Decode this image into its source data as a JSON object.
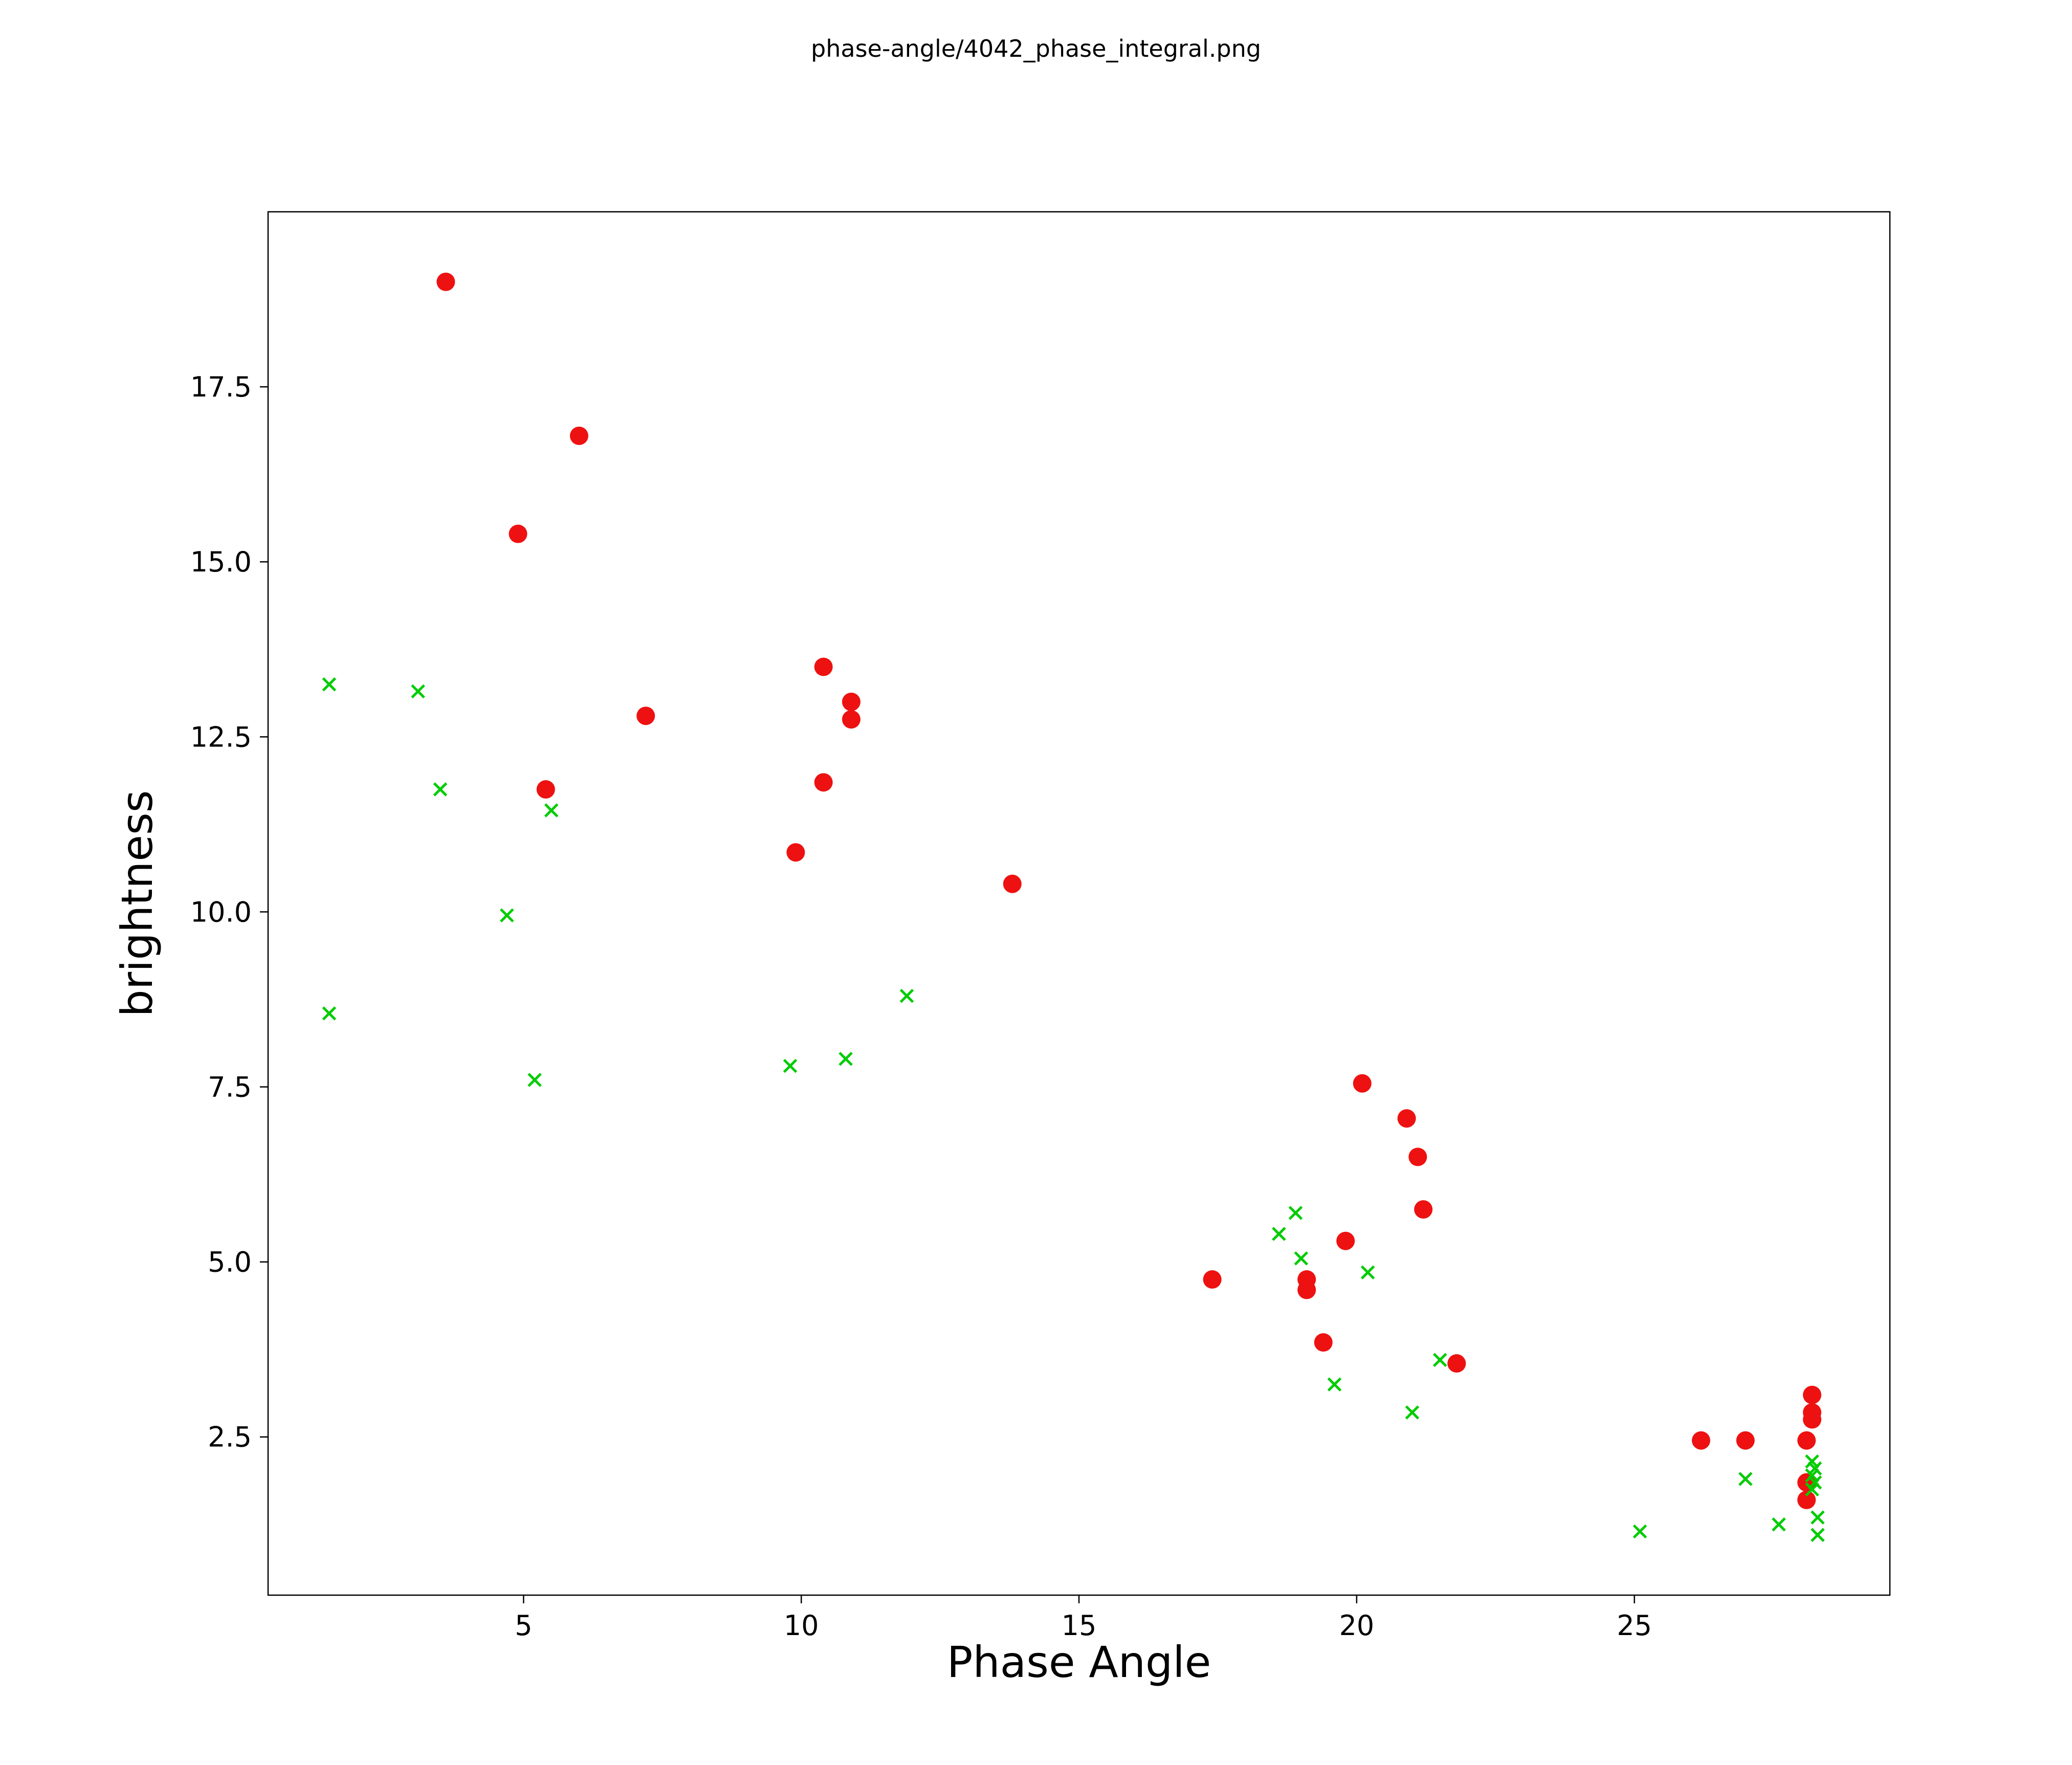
{
  "title": "phase-angle/4042_phase_integral.png",
  "chart_data": {
    "type": "scatter",
    "title": "phase-angle/4042_phase_integral.png",
    "xlabel": "Phase Angle",
    "ylabel": "brightness",
    "xlim": [
      0.4,
      29.6
    ],
    "ylim": [
      0.24,
      20.0
    ],
    "grid": false,
    "legend": "none",
    "x_ticks": [
      {
        "value": 5,
        "label": "5"
      },
      {
        "value": 10,
        "label": "10"
      },
      {
        "value": 15,
        "label": "15"
      },
      {
        "value": 20,
        "label": "20"
      },
      {
        "value": 25,
        "label": "25"
      }
    ],
    "y_ticks": [
      {
        "value": 2.5,
        "label": "2.5"
      },
      {
        "value": 5.0,
        "label": "5.0"
      },
      {
        "value": 7.5,
        "label": "7.5"
      },
      {
        "value": 10.0,
        "label": "10.0"
      },
      {
        "value": 12.5,
        "label": "12.5"
      },
      {
        "value": 15.0,
        "label": "15.0"
      },
      {
        "value": 17.5,
        "label": "17.5"
      }
    ],
    "series": [
      {
        "name": "red-circles",
        "marker": "circle",
        "color": "#ee1111",
        "points": [
          [
            3.6,
            19.0
          ],
          [
            6.0,
            16.8
          ],
          [
            4.9,
            15.4
          ],
          [
            7.2,
            12.8
          ],
          [
            5.4,
            11.75
          ],
          [
            10.4,
            13.5
          ],
          [
            10.9,
            13.0
          ],
          [
            10.9,
            12.75
          ],
          [
            10.4,
            11.85
          ],
          [
            9.9,
            10.85
          ],
          [
            13.8,
            10.4
          ],
          [
            20.1,
            7.55
          ],
          [
            20.9,
            7.05
          ],
          [
            21.1,
            6.5
          ],
          [
            21.2,
            5.75
          ],
          [
            19.8,
            5.3
          ],
          [
            17.4,
            4.75
          ],
          [
            19.1,
            4.75
          ],
          [
            19.1,
            4.6
          ],
          [
            19.4,
            3.85
          ],
          [
            21.8,
            3.55
          ],
          [
            26.2,
            2.45
          ],
          [
            27.0,
            2.45
          ],
          [
            28.2,
            3.1
          ],
          [
            28.2,
            2.85
          ],
          [
            28.2,
            2.75
          ],
          [
            28.1,
            2.45
          ],
          [
            28.1,
            1.85
          ],
          [
            28.1,
            1.6
          ]
        ]
      },
      {
        "name": "green-crosses",
        "marker": "x",
        "color": "#00cc00",
        "points": [
          [
            1.5,
            13.25
          ],
          [
            3.1,
            13.15
          ],
          [
            3.5,
            11.75
          ],
          [
            5.5,
            11.45
          ],
          [
            4.7,
            9.95
          ],
          [
            1.5,
            8.55
          ],
          [
            5.2,
            7.6
          ],
          [
            9.8,
            7.8
          ],
          [
            10.8,
            7.9
          ],
          [
            11.9,
            8.8
          ],
          [
            18.9,
            5.7
          ],
          [
            18.6,
            5.4
          ],
          [
            19.0,
            5.05
          ],
          [
            20.2,
            4.85
          ],
          [
            19.6,
            3.25
          ],
          [
            21.5,
            3.6
          ],
          [
            21.0,
            2.85
          ],
          [
            25.1,
            1.15
          ],
          [
            27.0,
            1.9
          ],
          [
            27.6,
            1.25
          ],
          [
            28.2,
            2.15
          ],
          [
            28.25,
            2.05
          ],
          [
            28.2,
            1.95
          ],
          [
            28.25,
            1.85
          ],
          [
            28.2,
            1.75
          ],
          [
            28.3,
            1.35
          ],
          [
            28.3,
            1.1
          ]
        ]
      }
    ]
  }
}
